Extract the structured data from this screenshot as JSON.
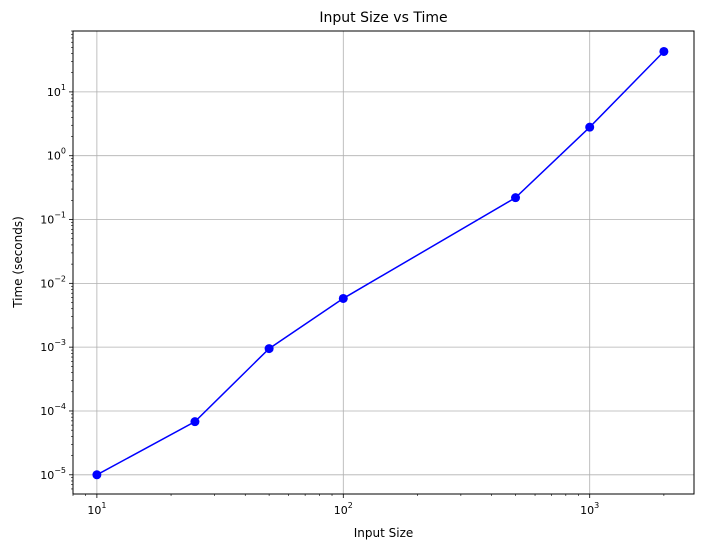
{
  "chart_data": {
    "type": "line",
    "title": "Input Size vs Time",
    "xlabel": "Input Size",
    "ylabel": "Time (seconds)",
    "xscale": "log",
    "yscale": "log",
    "xlim": [
      8,
      2650
    ],
    "ylim": [
      5e-06,
      90.0
    ],
    "grid": true,
    "x_ticks": [
      {
        "value": 10,
        "base": "10",
        "exp": "1"
      },
      {
        "value": 100,
        "base": "10",
        "exp": "2"
      },
      {
        "value": 1000,
        "base": "10",
        "exp": "3"
      }
    ],
    "y_ticks": [
      {
        "value": 1e-05,
        "base": "10",
        "exp": "−5"
      },
      {
        "value": 0.0001,
        "base": "10",
        "exp": "−4"
      },
      {
        "value": 0.001,
        "base": "10",
        "exp": "−3"
      },
      {
        "value": 0.01,
        "base": "10",
        "exp": "−2"
      },
      {
        "value": 0.1,
        "base": "10",
        "exp": "−1"
      },
      {
        "value": 1,
        "base": "10",
        "exp": "0"
      },
      {
        "value": 10,
        "base": "10",
        "exp": "1"
      }
    ],
    "series": [
      {
        "color": "#0000ff",
        "marker": "circle",
        "x": [
          10,
          25,
          50,
          100,
          500,
          1000,
          2000
        ],
        "y": [
          1e-05,
          6.8e-05,
          0.00095,
          0.0058,
          0.22,
          2.8,
          43
        ]
      }
    ]
  }
}
